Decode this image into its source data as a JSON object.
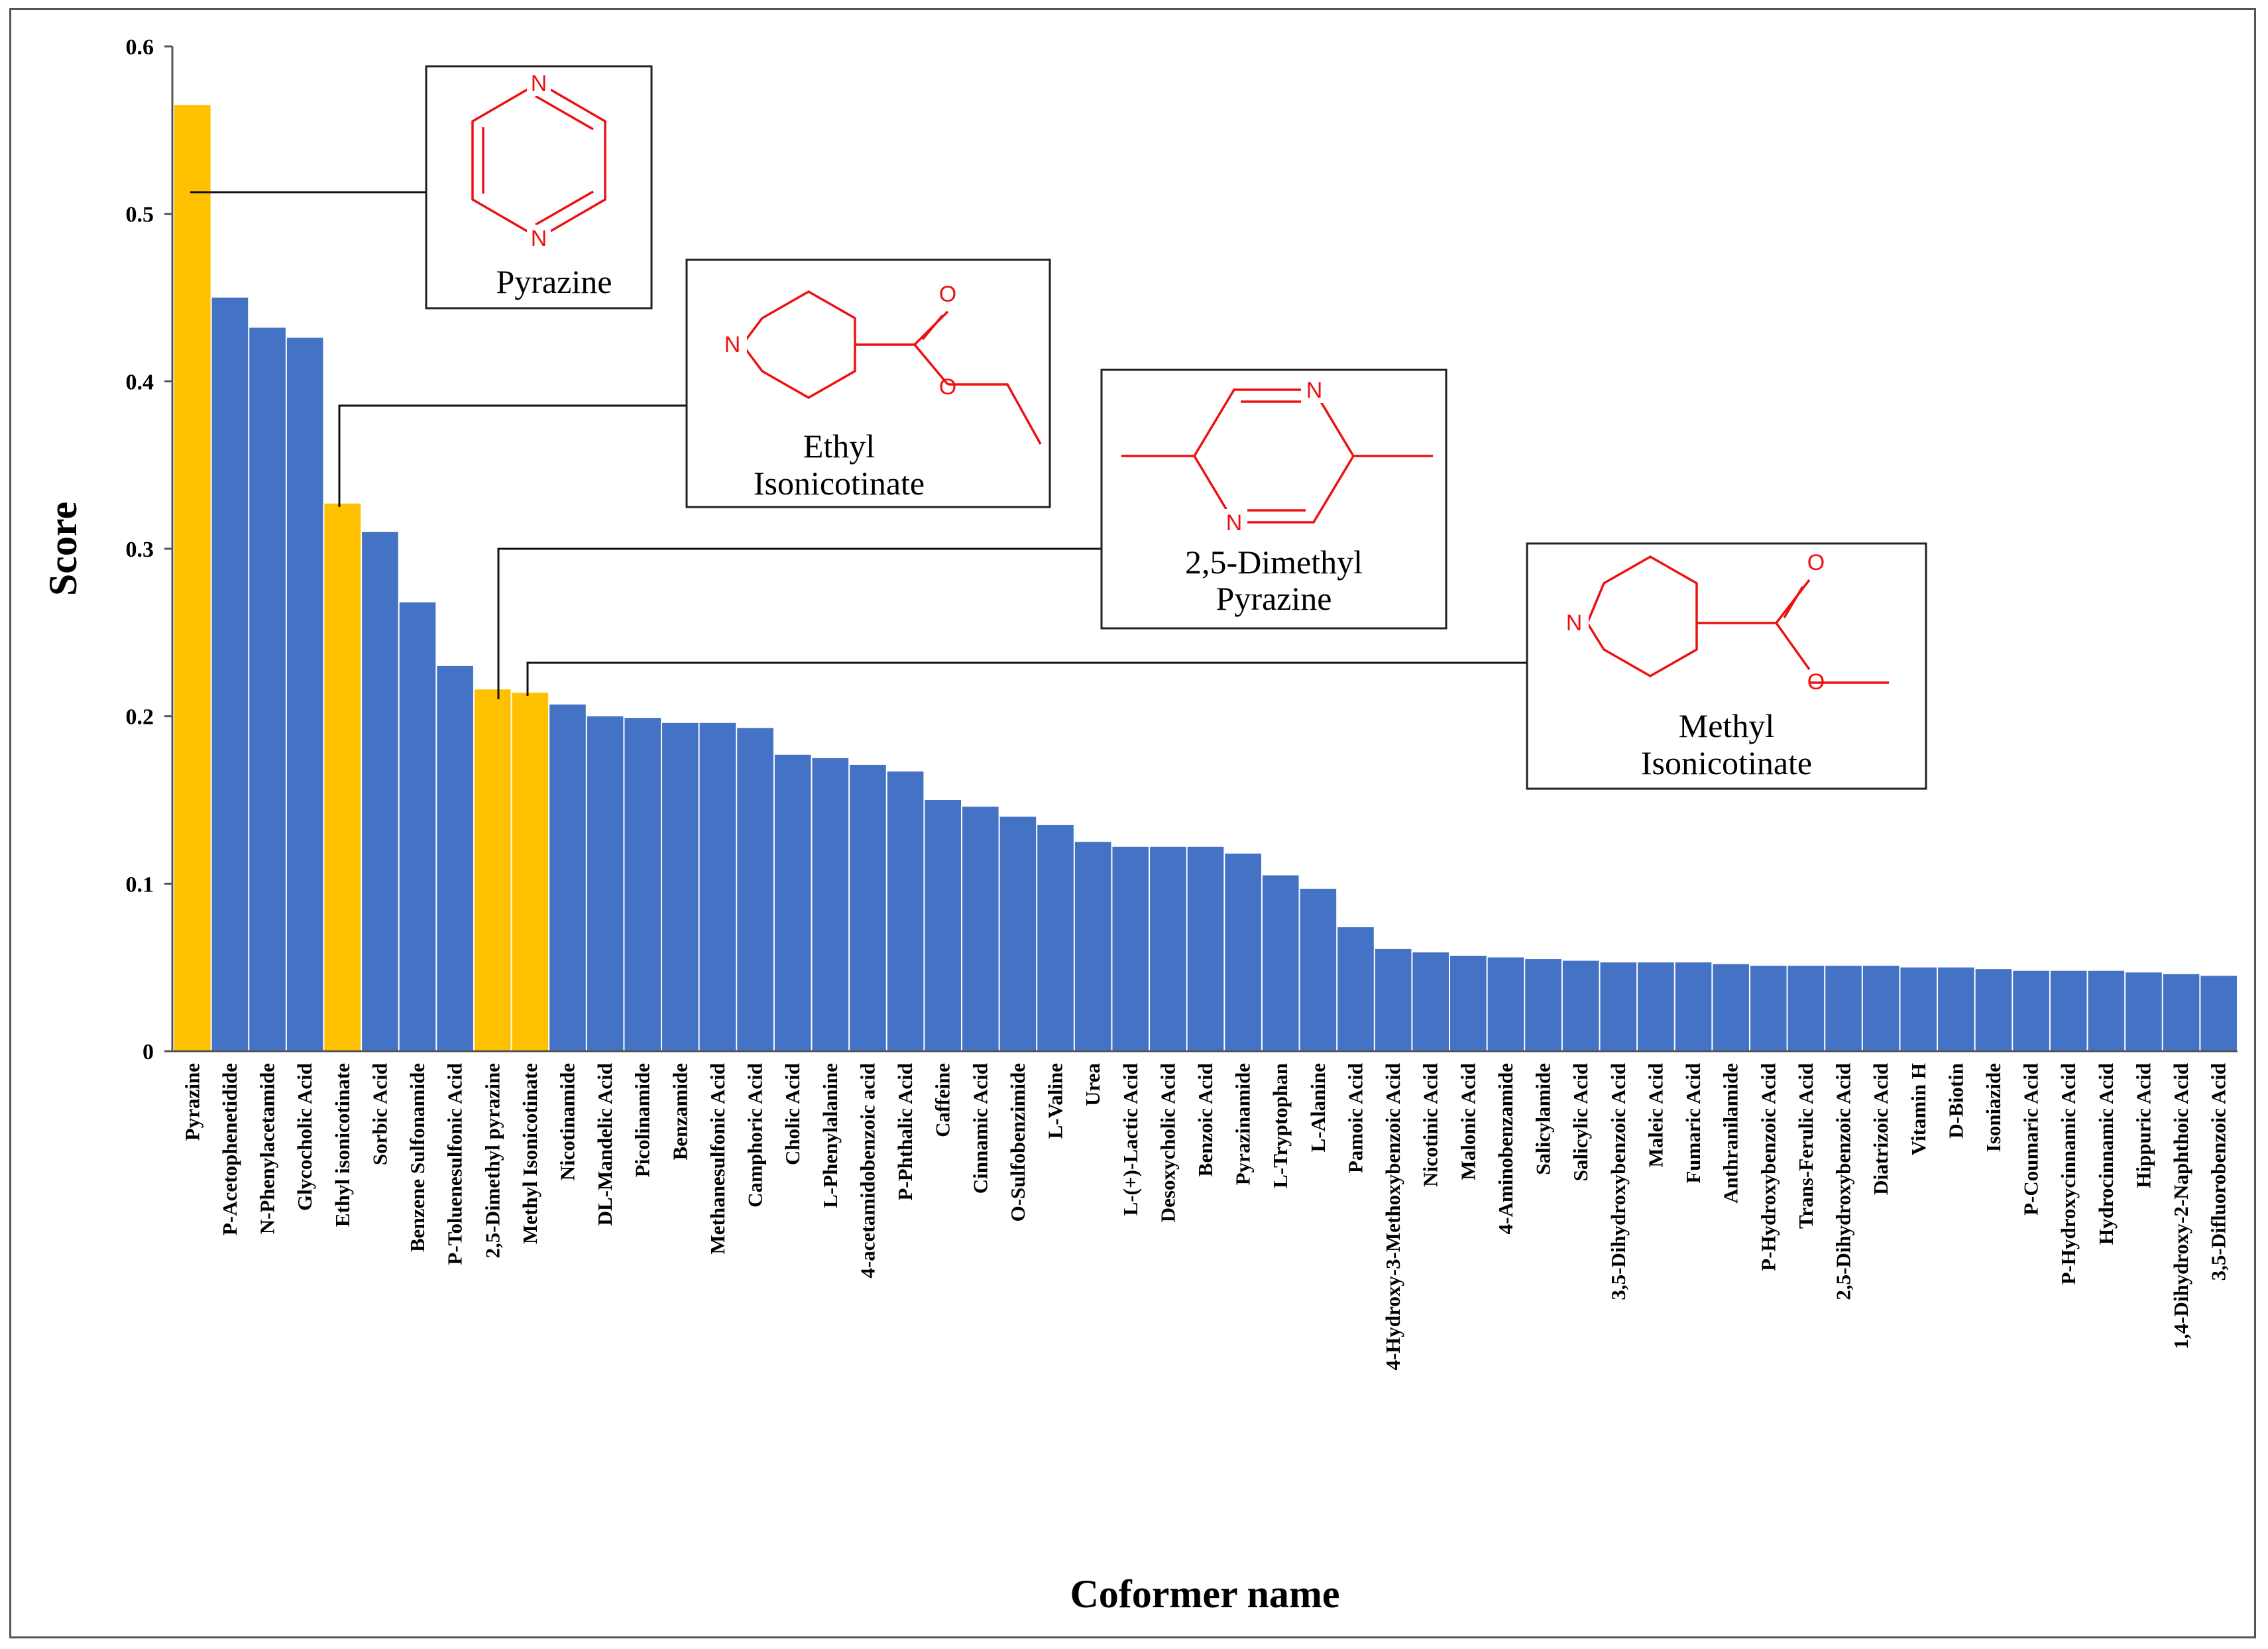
{
  "chart_data": {
    "type": "bar",
    "xlabel": "Coformer name",
    "ylabel": "Score",
    "ylim": [
      0,
      0.6
    ],
    "yticks": [
      "0",
      "0.1",
      "0.2",
      "0.3",
      "0.4",
      "0.5",
      "0.6"
    ],
    "grid": false,
    "colors": {
      "default": "#4472C4",
      "highlight": "#FFC000"
    },
    "categories": [
      "Pyrazine",
      "P-Acetophenetidide",
      "N-Phenylacetamide",
      "Glycocholic Acid",
      "Ethyl isonicotinate",
      "Sorbic Acid",
      "Benzene Sulfonamide",
      "P-Toluenesulfonic Acid",
      "2,5-Dimethyl pyrazine",
      "Methyl Isonicotinate",
      "Nicotinamide",
      "DL-Mandelic Acid",
      "Picolinamide",
      "Benzamide",
      "Methanesulfonic Acid",
      "Camphoric Acid",
      "Cholic Acid",
      "L-Phenylalanine",
      "4-acetamidobenzoic acid",
      "P-Phthalic Acid",
      "Caffeine",
      "Cinnamic Acid",
      "O-Sulfobenzimide",
      "L-Valine",
      "Urea",
      "L-(+)-Lactic Acid",
      "Desoxycholic Acid",
      "Benzoic Acid",
      "Pyrazinamide",
      "L-Tryptophan",
      "L-Alanine",
      "Pamoic Acid",
      "4-Hydroxy-3-Methoxybenzoic Acid",
      "Nicotinic Acid",
      "Malonic Acid",
      "4-Aminobenzamide",
      "Salicylamide",
      "Salicylic Acid",
      "3,5-Dihydroxybenzoic Acid",
      "Maleic Acid",
      "Fumaric Acid",
      "Anthranilamide",
      "P-Hydroxybenzoic Acid",
      "Trans-Ferulic Acid",
      "2,5-Dihydroxybenzoic Acid",
      "Diatrizoic Acid",
      "Vitamin H",
      "D-Biotin",
      "Isoniazide",
      "P-Coumaric Acid",
      "P-Hydroxycinnamic Acid",
      "Hydrocinnamic Acid",
      "Hippuric Acid",
      "1,4-Dihydroxy-2-Naphthoic Acid",
      "3,5-Difluorobenzoic Acid"
    ],
    "values": [
      0.565,
      0.45,
      0.432,
      0.426,
      0.327,
      0.31,
      0.268,
      0.23,
      0.216,
      0.214,
      0.207,
      0.2,
      0.199,
      0.196,
      0.196,
      0.193,
      0.177,
      0.175,
      0.171,
      0.167,
      0.15,
      0.146,
      0.14,
      0.135,
      0.125,
      0.122,
      0.122,
      0.122,
      0.118,
      0.105,
      0.097,
      0.074,
      0.061,
      0.059,
      0.057,
      0.056,
      0.055,
      0.054,
      0.053,
      0.053,
      0.053,
      0.052,
      0.051,
      0.051,
      0.051,
      0.051,
      0.05,
      0.05,
      0.049,
      0.048,
      0.048,
      0.048,
      0.047,
      0.046,
      0.045
    ],
    "highlighted": [
      0,
      4,
      8,
      9
    ],
    "annotations": [
      {
        "label_lines": [
          "Pyrazine"
        ],
        "bar_index": 0
      },
      {
        "label_lines": [
          "Ethyl",
          "Isonicotinate"
        ],
        "bar_index": 4
      },
      {
        "label_lines": [
          "2,5-Dimethyl",
          "Pyrazine"
        ],
        "bar_index": 8
      },
      {
        "label_lines": [
          "Methyl",
          "Isonicotinate"
        ],
        "bar_index": 9
      }
    ],
    "atom_label": "N",
    "carbonyl_atom_label": "O"
  }
}
